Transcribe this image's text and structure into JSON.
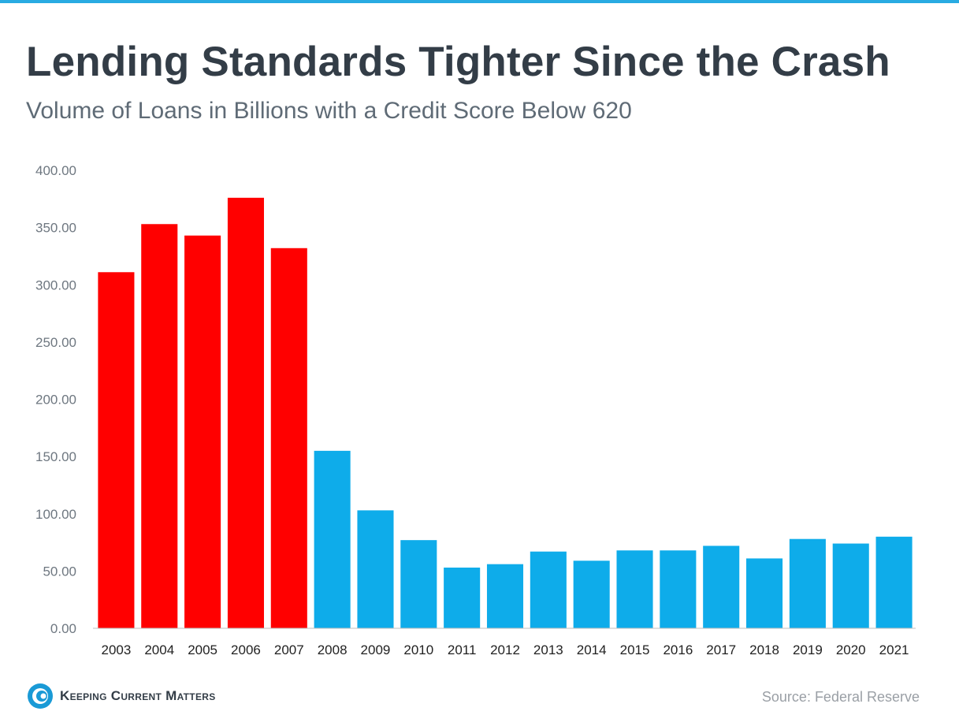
{
  "header": {
    "title": "Lending Standards Tighter Since the Crash",
    "subtitle": "Volume of Loans in Billions with a Credit Score Below 620"
  },
  "footer": {
    "brand": "Keeping Current Matters",
    "source": "Source: Federal Reserve"
  },
  "colors": {
    "pre_crash": "#ff0000",
    "post_crash": "#0eacea",
    "title": "#333d47",
    "top_rule": "#29abe2"
  },
  "chart_data": {
    "type": "bar",
    "title": "Lending Standards Tighter Since the Crash",
    "subtitle": "Volume of Loans in Billions with a Credit Score Below 620",
    "xlabel": "",
    "ylabel": "",
    "ylim": [
      0,
      400
    ],
    "yticks": [
      "0.00",
      "50.00",
      "100.00",
      "150.00",
      "200.00",
      "250.00",
      "300.00",
      "350.00",
      "400.00"
    ],
    "grid": false,
    "categories": [
      "2003",
      "2004",
      "2005",
      "2006",
      "2007",
      "2008",
      "2009",
      "2010",
      "2011",
      "2012",
      "2013",
      "2014",
      "2015",
      "2016",
      "2017",
      "2018",
      "2019",
      "2020",
      "2021"
    ],
    "values": [
      311,
      353,
      343,
      376,
      332,
      155,
      103,
      77,
      53,
      56,
      67,
      59,
      68,
      68,
      72,
      61,
      78,
      74,
      80
    ],
    "bar_colors": [
      "#ff0000",
      "#ff0000",
      "#ff0000",
      "#ff0000",
      "#ff0000",
      "#0eacea",
      "#0eacea",
      "#0eacea",
      "#0eacea",
      "#0eacea",
      "#0eacea",
      "#0eacea",
      "#0eacea",
      "#0eacea",
      "#0eacea",
      "#0eacea",
      "#0eacea",
      "#0eacea",
      "#0eacea"
    ]
  }
}
